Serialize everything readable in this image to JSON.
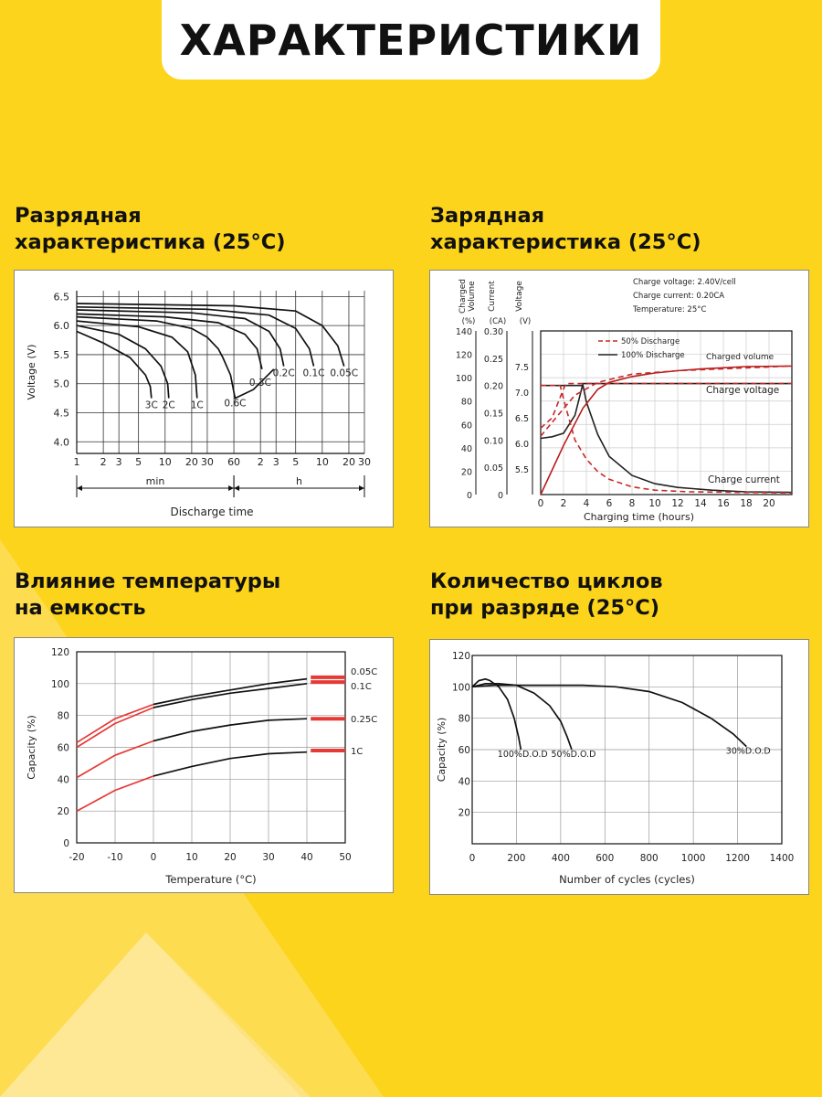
{
  "header": {
    "title": "ХАРАКТЕРИСТИКИ"
  },
  "sections": {
    "discharge": {
      "title_line1": "Разрядная",
      "title_line2": "характеристика (25°C)"
    },
    "charge": {
      "title_line1": "Зарядная",
      "title_line2": "характеристика (25°C)"
    },
    "temperature": {
      "title_line1": "Влияние температуры",
      "title_line2": "на емкость"
    },
    "cycles": {
      "title_line1": "Количество циклов",
      "title_line2": "при разряде (25°C)"
    }
  },
  "chart_data": [
    {
      "id": "discharge",
      "type": "line",
      "ylabel": "Voltage (V)",
      "xlabel": "Discharge time",
      "y_ticks": [
        "6.5",
        "6.0",
        "5.5",
        "5.0",
        "4.5",
        "4.0"
      ],
      "y_tick_values": [
        6.5,
        6.0,
        5.5,
        5.0,
        4.5,
        4.0
      ],
      "ylim": [
        3.8,
        6.6
      ],
      "x_ticks": [
        "1",
        "2",
        "3",
        "5",
        "10",
        "20",
        "30",
        "60",
        "2",
        "3",
        "5",
        "10",
        "20",
        "30"
      ],
      "x_ticks_minutes": [
        1,
        2,
        3,
        5,
        10,
        20,
        30,
        60,
        120,
        180,
        300,
        600,
        1200,
        1800
      ],
      "x_scale": "log",
      "xlim_minutes": [
        1,
        1800
      ],
      "x_groups": [
        {
          "label": "min",
          "from": 1,
          "to": 60
        },
        {
          "label": "h",
          "from": 60,
          "to": 1800
        }
      ],
      "grid": true,
      "series": [
        {
          "name": "3C",
          "x": [
            1,
            2,
            4,
            6,
            6.8,
            7
          ],
          "y": [
            5.9,
            5.7,
            5.45,
            5.15,
            4.95,
            4.75
          ]
        },
        {
          "name": "2C",
          "x": [
            1,
            3,
            6,
            9,
            10.7,
            11
          ],
          "y": [
            6.0,
            5.85,
            5.6,
            5.3,
            5.0,
            4.75
          ]
        },
        {
          "name": "1C",
          "x": [
            1,
            5,
            12,
            18,
            22,
            23
          ],
          "y": [
            6.08,
            5.98,
            5.8,
            5.55,
            5.15,
            4.75
          ]
        },
        {
          "name": "0.6C",
          "x": [
            1,
            8,
            20,
            30,
            40,
            45,
            55,
            62,
            100,
            170
          ],
          "y": [
            6.15,
            6.08,
            5.95,
            5.8,
            5.6,
            5.45,
            5.15,
            4.75,
            4.9,
            5.25
          ]
        },
        {
          "name": "0.3C",
          "x": [
            1,
            10,
            40,
            80,
            110,
            125
          ],
          "y": [
            6.2,
            6.15,
            6.05,
            5.85,
            5.6,
            5.25
          ]
        },
        {
          "name": "0.2C",
          "x": [
            1,
            20,
            80,
            150,
            200,
            220
          ],
          "y": [
            6.27,
            6.22,
            6.12,
            5.9,
            5.6,
            5.3
          ]
        },
        {
          "name": "0.1C",
          "x": [
            1,
            30,
            150,
            300,
            430,
            480
          ],
          "y": [
            6.32,
            6.28,
            6.18,
            5.95,
            5.6,
            5.3
          ]
        },
        {
          "name": "0.05C",
          "x": [
            1,
            60,
            300,
            600,
            900,
            1060
          ],
          "y": [
            6.38,
            6.34,
            6.25,
            6.0,
            5.65,
            5.3
          ]
        }
      ]
    },
    {
      "id": "charge",
      "type": "line",
      "xlabel": "Charging time (hours)",
      "x_ticks": [
        0,
        2,
        4,
        6,
        8,
        10,
        12,
        14,
        16,
        18,
        20
      ],
      "xlim": [
        0,
        22
      ],
      "axes": [
        {
          "label_lines": [
            "Charged",
            "Volume",
            "(%)"
          ],
          "ticks": [
            0,
            20,
            40,
            60,
            80,
            100,
            120,
            140
          ],
          "range": [
            0,
            140
          ]
        },
        {
          "label_lines": [
            "Current",
            "(CA)"
          ],
          "ticks": [
            "0",
            "0.05",
            "0.10",
            "0.15",
            "0.20",
            "0.25",
            "0.30"
          ],
          "range": [
            0,
            0.3
          ]
        },
        {
          "label_lines": [
            "Voltage",
            "(V)"
          ],
          "ticks": [
            "5.5",
            "6.0",
            "6.5",
            "7.0",
            "7.5"
          ],
          "tick_values": [
            5.5,
            6.0,
            6.5,
            7.0,
            7.5
          ],
          "range": [
            5.0,
            8.2
          ]
        }
      ],
      "info": [
        "Charge voltage: 2.40V/cell",
        "Charge current: 0.20CA",
        "Temperature: 25°C"
      ],
      "legend": [
        "50% Discharge",
        "100% Discharge"
      ],
      "annotations": [
        "Charged volume",
        "Charge voltage",
        "Charge current"
      ],
      "grid": true,
      "series": [
        {
          "name": "100% Discharge",
          "curve": "voltage",
          "x": [
            0,
            1,
            2,
            3,
            3.7,
            22
          ],
          "y": [
            6.1,
            6.13,
            6.2,
            6.55,
            7.17,
            7.17
          ]
        },
        {
          "name": "100% Discharge",
          "curve": "current",
          "x": [
            0,
            3.7,
            4,
            5,
            6,
            8,
            10,
            12,
            15,
            18,
            22
          ],
          "y": [
            0.2,
            0.2,
            0.17,
            0.11,
            0.07,
            0.035,
            0.02,
            0.013,
            0.008,
            0.005,
            0.004
          ]
        },
        {
          "name": "100% Discharge",
          "curve": "volume",
          "x": [
            0,
            2,
            3.7,
            5,
            6,
            8,
            10,
            12,
            14,
            16,
            18,
            22
          ],
          "y": [
            0,
            42,
            74,
            90,
            96,
            101,
            104,
            106,
            107.5,
            108.5,
            109.5,
            110
          ]
        },
        {
          "name": "50% Discharge",
          "curve": "voltage",
          "x": [
            0,
            1,
            1.7,
            2.2,
            22
          ],
          "y": [
            6.3,
            6.5,
            6.9,
            7.17,
            7.17
          ]
        },
        {
          "name": "50% Discharge",
          "curve": "current",
          "x": [
            0,
            1.7,
            2.2,
            3,
            4,
            5,
            6,
            8,
            10,
            13,
            22
          ],
          "y": [
            0.2,
            0.2,
            0.16,
            0.1,
            0.065,
            0.042,
            0.028,
            0.014,
            0.008,
            0.005,
            0.003
          ]
        },
        {
          "name": "50% Discharge",
          "curve": "volume",
          "x": [
            0,
            1.7,
            3,
            5,
            8,
            12,
            22
          ],
          "y": [
            50,
            70,
            85,
            96,
            103,
            106,
            110
          ]
        }
      ]
    },
    {
      "id": "temperature",
      "type": "line",
      "ylabel": "Capacity (%)",
      "xlabel": "Temperature (°C)",
      "x_ticks": [
        -20,
        -10,
        0,
        10,
        20,
        30,
        40,
        50
      ],
      "y_ticks": [
        0,
        20,
        40,
        60,
        80,
        100,
        120
      ],
      "xlim": [
        -20,
        50
      ],
      "ylim": [
        0,
        120
      ],
      "grid": true,
      "series": [
        {
          "name": "0.05C",
          "x": [
            -20,
            -10,
            0,
            10,
            20,
            30,
            40,
            41,
            50
          ],
          "y": [
            63,
            78,
            87,
            92,
            96,
            100,
            103,
            104,
            104
          ]
        },
        {
          "name": "0.1C",
          "x": [
            -20,
            -10,
            0,
            10,
            20,
            30,
            40,
            41,
            50
          ],
          "y": [
            60,
            75,
            85,
            90,
            94,
            97,
            100,
            101,
            101
          ]
        },
        {
          "name": "0.25C",
          "x": [
            -20,
            -10,
            0,
            10,
            20,
            30,
            40,
            41,
            50
          ],
          "y": [
            41,
            55,
            64,
            70,
            74,
            77,
            78,
            78,
            78
          ]
        },
        {
          "name": "1C",
          "x": [
            -20,
            -10,
            0,
            10,
            20,
            30,
            40,
            41,
            50
          ],
          "y": [
            20,
            33,
            42,
            48,
            53,
            56,
            57,
            58,
            58
          ]
        }
      ]
    },
    {
      "id": "cycles",
      "type": "line",
      "ylabel": "Capacity (%)",
      "xlabel": "Number of cycles (cycles)",
      "x_ticks": [
        0,
        200,
        400,
        600,
        800,
        1000,
        1200,
        1400
      ],
      "y_ticks": [
        20,
        40,
        60,
        80,
        100,
        120
      ],
      "xlim": [
        0,
        1400
      ],
      "ylim": [
        0,
        120
      ],
      "grid": true,
      "series": [
        {
          "name": "100%D.O.D",
          "x": [
            0,
            30,
            60,
            80,
            120,
            160,
            190,
            210,
            220
          ],
          "y": [
            100,
            104,
            105,
            104,
            100,
            92,
            80,
            68,
            60
          ]
        },
        {
          "name": "50%D.O.D",
          "x": [
            0,
            60,
            120,
            200,
            280,
            350,
            400,
            430,
            450
          ],
          "y": [
            100,
            102,
            102,
            101,
            96,
            88,
            78,
            68,
            60
          ]
        },
        {
          "name": "30%D.O.D",
          "x": [
            0,
            100,
            300,
            500,
            650,
            800,
            950,
            1080,
            1180,
            1240
          ],
          "y": [
            100,
            101,
            101,
            101,
            100,
            97,
            90,
            80,
            70,
            62
          ]
        }
      ]
    }
  ]
}
